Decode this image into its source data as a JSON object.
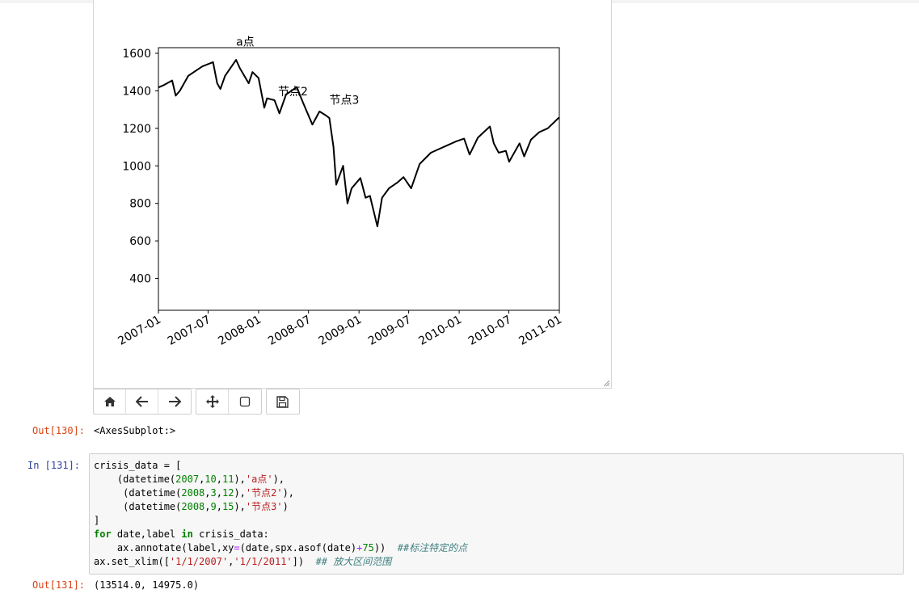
{
  "figure": {
    "toolbar": [
      {
        "name": "home-icon",
        "label": "Home"
      },
      {
        "name": "back-arrow-icon",
        "label": "Back"
      },
      {
        "name": "forward-arrow-icon",
        "label": "Forward"
      },
      {
        "name": "pan-move-icon",
        "label": "Pan"
      },
      {
        "name": "zoom-rect-icon",
        "label": "Zoom to rectangle"
      },
      {
        "name": "save-icon",
        "label": "Download plot"
      }
    ]
  },
  "chart_data": {
    "type": "line",
    "title": "",
    "xlabel": "",
    "ylabel": "",
    "ylim": [
      230,
      1630
    ],
    "xlim": [
      "2007-01-01",
      "2011-01-01"
    ],
    "yticks": [
      "400",
      "600",
      "800",
      "1000",
      "1200",
      "1400",
      "1600"
    ],
    "xticks": [
      "2007-01",
      "2007-07",
      "2008-01",
      "2008-07",
      "2009-01",
      "2009-07",
      "2010-01",
      "2010-07",
      "2011-01"
    ],
    "grid": false,
    "color": "#000000",
    "series": [
      {
        "x": [
          "2007-01-01",
          "2007-01-20",
          "2007-02-20",
          "2007-03-05",
          "2007-03-20",
          "2007-04-20",
          "2007-05-20",
          "2007-06-10",
          "2007-07-19",
          "2007-08-03",
          "2007-08-15",
          "2007-09-01",
          "2007-10-11",
          "2007-10-25",
          "2007-11-26",
          "2007-12-10",
          "2008-01-01",
          "2008-01-22",
          "2008-02-01",
          "2008-02-28",
          "2008-03-12",
          "2008-03-17",
          "2008-04-10",
          "2008-05-19",
          "2008-06-10",
          "2008-07-15",
          "2008-08-10",
          "2008-09-01",
          "2008-09-15",
          "2008-09-30",
          "2008-10-10",
          "2008-10-20",
          "2008-11-04",
          "2008-11-20",
          "2008-12-05",
          "2009-01-06",
          "2009-01-25",
          "2009-02-10",
          "2009-03-09",
          "2009-03-26",
          "2009-04-20",
          "2009-05-20",
          "2009-06-12",
          "2009-07-10",
          "2009-08-10",
          "2009-09-20",
          "2009-10-20",
          "2009-11-20",
          "2009-12-20",
          "2010-01-19",
          "2010-02-08",
          "2010-03-10",
          "2010-04-23",
          "2010-05-07",
          "2010-05-25",
          "2010-06-20",
          "2010-07-02",
          "2010-08-09",
          "2010-08-26",
          "2010-09-20",
          "2010-10-20",
          "2010-11-20",
          "2010-12-31"
        ],
        "y": [
          1418,
          1430,
          1455,
          1374,
          1400,
          1480,
          1510,
          1530,
          1553,
          1440,
          1410,
          1480,
          1565,
          1520,
          1440,
          1500,
          1468,
          1310,
          1360,
          1350,
          1300,
          1280,
          1380,
          1420,
          1340,
          1220,
          1290,
          1270,
          1255,
          1100,
          900,
          940,
          1000,
          800,
          880,
          935,
          830,
          840,
          677,
          830,
          880,
          910,
          940,
          880,
          1010,
          1070,
          1090,
          1110,
          1130,
          1145,
          1060,
          1150,
          1210,
          1120,
          1070,
          1080,
          1022,
          1120,
          1050,
          1140,
          1180,
          1200,
          1258
        ]
      }
    ],
    "annotations": [
      {
        "text": "a点",
        "x": "2007-10-11",
        "y": 1640
      },
      {
        "text": "节点2",
        "x": "2008-03-12",
        "y": 1375
      },
      {
        "text": "节点3",
        "x": "2008-09-15",
        "y": 1330
      }
    ]
  },
  "cells": {
    "out130_prompt": "Out[130]:",
    "out130_text": "<AxesSubplot:>",
    "in131_prompt": "In  [131]:",
    "out131_prompt": "Out[131]:",
    "out131_text": "(13514.0, 14975.0)"
  },
  "code": {
    "l1_a": "crisis_data = [",
    "l2_a": "    (datetime(",
    "l2_n1": "2007",
    "l2_n2": "10",
    "l2_n3": "11",
    "l2_s": "'a点'",
    "l2_b": "),",
    "l3_a": "     (datetime(",
    "l3_n1": "2008",
    "l3_n2": "3",
    "l3_n3": "12",
    "l3_s": "'节点2'",
    "l3_b": "),",
    "l4_a": "     (datetime(",
    "l4_n1": "2008",
    "l4_n2": "9",
    "l4_n3": "15",
    "l4_s": "'节点3'",
    "l4_b": ")",
    "l5": "]",
    "l6_for": "for",
    "l6_mid": " date,label ",
    "l6_in": "in",
    "l6_end": " crisis_data:",
    "l7_a": "    ax.annotate(label,xy",
    "l7_eq": "=",
    "l7_b": "(date,spx.asof(date)",
    "l7_plus": "+",
    "l7_n": "75",
    "l7_c": "))  ",
    "l7_com": "##标注特定的点",
    "l8_a": "ax.set_xlim([",
    "l8_s1": "'1/1/2007'",
    "l8_comma": ",",
    "l8_s2": "'1/1/2011'",
    "l8_b": "])  ",
    "l8_com": "## 放大区间范围"
  }
}
